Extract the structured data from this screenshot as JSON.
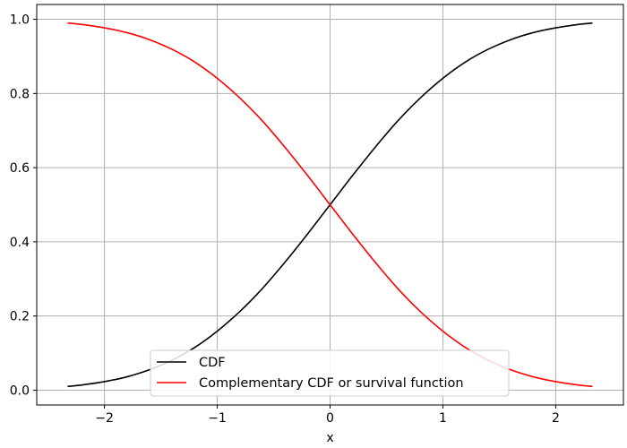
{
  "chart_data": {
    "type": "line",
    "title": "",
    "xlabel": "x",
    "ylabel": "",
    "xlim": [
      -2.6,
      2.6
    ],
    "ylim": [
      -0.04,
      1.04
    ],
    "grid": true,
    "legend_position": "lower-center",
    "x_ticks": [
      {
        "value": -2,
        "label": "−2"
      },
      {
        "value": -1,
        "label": "−1"
      },
      {
        "value": 0,
        "label": "0"
      },
      {
        "value": 1,
        "label": "1"
      },
      {
        "value": 2,
        "label": "2"
      }
    ],
    "y_ticks": [
      {
        "value": 0.0,
        "label": "0.0"
      },
      {
        "value": 0.2,
        "label": "0.2"
      },
      {
        "value": 0.4,
        "label": "0.4"
      },
      {
        "value": 0.6,
        "label": "0.6"
      },
      {
        "value": 0.8,
        "label": "0.8"
      },
      {
        "value": 1.0,
        "label": "1.0"
      }
    ],
    "x": [
      -2.326,
      -2.2,
      -2.0,
      -1.8,
      -1.6,
      -1.4,
      -1.2,
      -1.0,
      -0.8,
      -0.6,
      -0.4,
      -0.2,
      0.0,
      0.2,
      0.4,
      0.6,
      0.8,
      1.0,
      1.2,
      1.4,
      1.6,
      1.8,
      2.0,
      2.2,
      2.326
    ],
    "series": [
      {
        "name": "CDF",
        "color": "#000000",
        "values": [
          0.01,
          0.014,
          0.023,
          0.036,
          0.055,
          0.081,
          0.115,
          0.159,
          0.212,
          0.274,
          0.345,
          0.421,
          0.5,
          0.579,
          0.655,
          0.726,
          0.788,
          0.841,
          0.885,
          0.919,
          0.945,
          0.964,
          0.977,
          0.986,
          0.99
        ]
      },
      {
        "name": "Complementary CDF or survival function",
        "color": "#ff0000",
        "values": [
          0.99,
          0.986,
          0.977,
          0.964,
          0.945,
          0.919,
          0.885,
          0.841,
          0.788,
          0.726,
          0.655,
          0.579,
          0.5,
          0.421,
          0.345,
          0.274,
          0.212,
          0.159,
          0.115,
          0.081,
          0.055,
          0.036,
          0.023,
          0.014,
          0.01
        ]
      }
    ]
  }
}
